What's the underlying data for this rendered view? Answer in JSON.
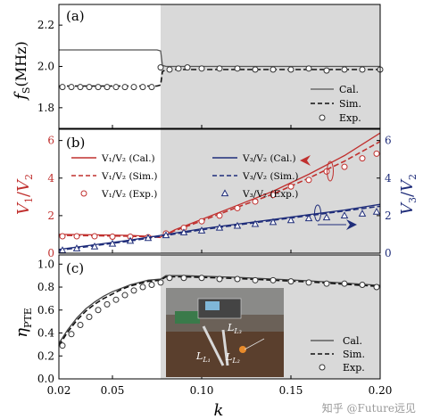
{
  "chart_data": [
    {
      "panel": "(a)",
      "type": "line",
      "ylabel_main": "f",
      "ylabel_sub": "S",
      "ylabel_unit": "(MHz)",
      "xlim": [
        0.02,
        0.2
      ],
      "ylim": [
        1.7,
        2.3
      ],
      "yticks": [
        "1.8",
        "2.0",
        "2.2"
      ],
      "ytick_values": [
        1.8,
        2.0,
        2.2
      ],
      "shaded_from_k": 0.077,
      "legend": {
        "position": "bottom-right",
        "entries": [
          "Cal.",
          "Sim.",
          "Exp."
        ]
      },
      "series": [
        {
          "name": "Cal.",
          "style": "solid",
          "color": "#555555",
          "x": [
            0.02,
            0.03,
            0.04,
            0.05,
            0.06,
            0.07,
            0.075,
            0.077,
            0.078,
            0.08,
            0.09,
            0.1,
            0.12,
            0.14,
            0.16,
            0.18,
            0.2
          ],
          "y": [
            2.08,
            2.08,
            2.08,
            2.08,
            2.08,
            2.08,
            2.08,
            2.075,
            2.005,
            2.0,
            2.0,
            2.0,
            2.0,
            2.0,
            2.0,
            2.0,
            2.0
          ]
        },
        {
          "name": "Sim.",
          "style": "dashed",
          "color": "#111111",
          "x": [
            0.02,
            0.03,
            0.04,
            0.05,
            0.06,
            0.07,
            0.075,
            0.077,
            0.078,
            0.08,
            0.09,
            0.1,
            0.12,
            0.14,
            0.16,
            0.18,
            0.2
          ],
          "y": [
            1.905,
            1.905,
            1.905,
            1.905,
            1.905,
            1.905,
            1.905,
            1.91,
            1.975,
            1.985,
            1.985,
            1.985,
            1.985,
            1.985,
            1.985,
            1.985,
            1.985
          ]
        },
        {
          "name": "Exp.",
          "style": "marker-circle",
          "color": "#333333",
          "x": [
            0.022,
            0.027,
            0.032,
            0.037,
            0.042,
            0.047,
            0.052,
            0.057,
            0.062,
            0.067,
            0.072,
            0.077,
            0.082,
            0.087,
            0.092,
            0.1,
            0.11,
            0.12,
            0.13,
            0.14,
            0.15,
            0.16,
            0.17,
            0.18,
            0.19,
            0.2
          ],
          "y": [
            1.9,
            1.9,
            1.9,
            1.9,
            1.9,
            1.9,
            1.9,
            1.9,
            1.9,
            1.9,
            1.9,
            1.995,
            1.985,
            1.99,
            1.995,
            1.99,
            1.99,
            1.99,
            1.985,
            1.985,
            1.985,
            1.99,
            1.98,
            1.985,
            1.985,
            1.985
          ]
        }
      ]
    },
    {
      "panel": "(b)",
      "type": "line",
      "ylabel_left_num": "V",
      "ylabel_left_num_sub": "1",
      "ylabel_left_den": "V",
      "ylabel_left_den_sub": "2",
      "ylabel_right_num": "V",
      "ylabel_right_num_sub": "3",
      "ylabel_right_den": "V",
      "ylabel_right_den_sub": "2",
      "xlim": [
        0.02,
        0.2
      ],
      "ylim_left": [
        0,
        6.6
      ],
      "ylim_right": [
        0,
        6.6
      ],
      "yticks_left": [
        "0",
        "2",
        "4",
        "6"
      ],
      "yticks_right": [
        "0",
        "2",
        "4",
        "6"
      ],
      "ytick_values": [
        0,
        2,
        4,
        6
      ],
      "shaded_from_k": 0.077,
      "legend": {
        "position": "top-left",
        "entries": [
          {
            "text": "V₁/V₂ (Cal.)",
            "style": "solid",
            "color": "#c0302e"
          },
          {
            "text": "V₃/V₂ (Cal.)",
            "style": "solid",
            "color": "#1f2d7a"
          },
          {
            "text": "V₁/V₂ (Sim.)",
            "style": "dashed",
            "color": "#c0302e"
          },
          {
            "text": "V₃/V₂ (Sim.)",
            "style": "dashed",
            "color": "#1f2d7a"
          },
          {
            "text": "V₁/V₂ (Exp.)",
            "style": "marker-circle",
            "color": "#c0302e"
          },
          {
            "text": "V₃/V₂ (Exp.)",
            "style": "marker-triangle",
            "color": "#1f2d7a"
          }
        ]
      },
      "series": [
        {
          "name": "V₁/V₂ (Cal.)",
          "axis": "left",
          "style": "solid",
          "color": "#c0302e",
          "x": [
            0.02,
            0.04,
            0.06,
            0.07,
            0.077,
            0.085,
            0.1,
            0.12,
            0.14,
            0.16,
            0.18,
            0.2
          ],
          "y": [
            1.0,
            0.98,
            0.95,
            0.9,
            0.86,
            1.25,
            1.8,
            2.55,
            3.3,
            4.2,
            5.2,
            6.4
          ]
        },
        {
          "name": "V₁/V₂ (Sim.)",
          "axis": "left",
          "style": "dashed",
          "color": "#c0302e",
          "x": [
            0.02,
            0.04,
            0.06,
            0.07,
            0.077,
            0.085,
            0.1,
            0.12,
            0.14,
            0.16,
            0.18,
            0.2
          ],
          "y": [
            0.95,
            0.93,
            0.9,
            0.88,
            0.84,
            1.2,
            1.72,
            2.45,
            3.15,
            4.0,
            4.9,
            5.95
          ]
        },
        {
          "name": "V₁/V₂ (Exp.)",
          "axis": "left",
          "style": "marker-circle",
          "color": "#c0302e",
          "x": [
            0.022,
            0.03,
            0.04,
            0.05,
            0.06,
            0.07,
            0.08,
            0.09,
            0.1,
            0.11,
            0.12,
            0.13,
            0.14,
            0.15,
            0.16,
            0.17,
            0.18,
            0.19,
            0.198
          ],
          "y": [
            0.9,
            0.9,
            0.9,
            0.88,
            0.88,
            0.85,
            1.05,
            1.35,
            1.7,
            2.0,
            2.4,
            2.75,
            3.1,
            3.55,
            3.9,
            4.35,
            4.6,
            5.05,
            5.3
          ]
        },
        {
          "name": "V₃/V₂ (Cal.)",
          "axis": "right",
          "style": "solid",
          "color": "#1f2d7a",
          "x": [
            0.02,
            0.04,
            0.06,
            0.077,
            0.1,
            0.12,
            0.14,
            0.16,
            0.18,
            0.2
          ],
          "y": [
            0.2,
            0.45,
            0.7,
            0.95,
            1.3,
            1.55,
            1.8,
            2.05,
            2.3,
            2.6
          ]
        },
        {
          "name": "V₃/V₂ (Sim.)",
          "axis": "right",
          "style": "dashed",
          "color": "#1f2d7a",
          "x": [
            0.02,
            0.04,
            0.06,
            0.077,
            0.1,
            0.12,
            0.14,
            0.16,
            0.18,
            0.2
          ],
          "y": [
            0.15,
            0.4,
            0.65,
            0.9,
            1.25,
            1.5,
            1.75,
            2.0,
            2.25,
            2.5
          ]
        },
        {
          "name": "V₃/V₂ (Exp.)",
          "axis": "right",
          "style": "marker-triangle",
          "color": "#1f2d7a",
          "x": [
            0.022,
            0.03,
            0.04,
            0.05,
            0.06,
            0.07,
            0.08,
            0.09,
            0.1,
            0.11,
            0.12,
            0.13,
            0.14,
            0.15,
            0.16,
            0.17,
            0.18,
            0.19,
            0.198
          ],
          "y": [
            0.15,
            0.25,
            0.35,
            0.5,
            0.65,
            0.8,
            0.95,
            1.1,
            1.2,
            1.35,
            1.45,
            1.55,
            1.65,
            1.75,
            1.85,
            1.9,
            2.0,
            2.1,
            2.2
          ]
        }
      ],
      "annotations": [
        {
          "type": "arrow",
          "direction": "left",
          "color": "#c0302e",
          "target_axis": "left"
        },
        {
          "type": "arrow",
          "direction": "right",
          "color": "#1f2d7a",
          "target_axis": "right"
        }
      ]
    },
    {
      "panel": "(c)",
      "type": "line",
      "ylabel_main": "η",
      "ylabel_sub": "PTE",
      "xlabel": "k",
      "xlim": [
        0.02,
        0.2
      ],
      "ylim": [
        0.0,
        1.08
      ],
      "yticks": [
        "0.0",
        "0.2",
        "0.4",
        "0.6",
        "0.8",
        "1.0"
      ],
      "ytick_values": [
        0.0,
        0.2,
        0.4,
        0.6,
        0.8,
        1.0
      ],
      "xticks": [
        "0.02",
        "0.05",
        "0.10",
        "0.15",
        "0.20"
      ],
      "xtick_values": [
        0.02,
        0.05,
        0.1,
        0.15,
        0.2
      ],
      "shaded_from_k": 0.077,
      "legend": {
        "position": "bottom-right",
        "entries": [
          "Cal.",
          "Sim.",
          "Exp."
        ]
      },
      "inset": {
        "description": "experimental setup photo",
        "labels": [
          "L₁",
          "L₂",
          "L₃"
        ]
      },
      "series": [
        {
          "name": "Cal.",
          "style": "solid",
          "color": "#444444",
          "x": [
            0.02,
            0.025,
            0.03,
            0.035,
            0.04,
            0.045,
            0.05,
            0.055,
            0.06,
            0.065,
            0.07,
            0.077,
            0.08,
            0.09,
            0.1,
            0.12,
            0.14,
            0.16,
            0.18,
            0.2
          ],
          "y": [
            0.31,
            0.43,
            0.53,
            0.61,
            0.67,
            0.72,
            0.76,
            0.79,
            0.82,
            0.84,
            0.86,
            0.87,
            0.9,
            0.9,
            0.895,
            0.885,
            0.87,
            0.855,
            0.835,
            0.815
          ]
        },
        {
          "name": "Sim.",
          "style": "dashed",
          "color": "#111111",
          "x": [
            0.02,
            0.025,
            0.03,
            0.035,
            0.04,
            0.045,
            0.05,
            0.055,
            0.06,
            0.065,
            0.07,
            0.077,
            0.08,
            0.09,
            0.1,
            0.12,
            0.14,
            0.16,
            0.18,
            0.2
          ],
          "y": [
            0.29,
            0.41,
            0.51,
            0.59,
            0.65,
            0.7,
            0.74,
            0.78,
            0.81,
            0.83,
            0.85,
            0.86,
            0.89,
            0.89,
            0.885,
            0.875,
            0.86,
            0.845,
            0.825,
            0.805
          ]
        },
        {
          "name": "Exp.",
          "style": "marker-circle",
          "color": "#333333",
          "x": [
            0.022,
            0.027,
            0.032,
            0.037,
            0.042,
            0.047,
            0.052,
            0.057,
            0.062,
            0.067,
            0.072,
            0.077,
            0.082,
            0.09,
            0.1,
            0.11,
            0.12,
            0.13,
            0.14,
            0.15,
            0.16,
            0.17,
            0.18,
            0.19,
            0.198
          ],
          "y": [
            0.29,
            0.39,
            0.47,
            0.54,
            0.6,
            0.65,
            0.69,
            0.73,
            0.77,
            0.8,
            0.82,
            0.84,
            0.88,
            0.88,
            0.88,
            0.87,
            0.87,
            0.86,
            0.86,
            0.85,
            0.84,
            0.83,
            0.83,
            0.82,
            0.8
          ]
        }
      ]
    }
  ],
  "watermark": "知乎 @Future远见",
  "colors": {
    "shade": "#d9d9d9",
    "red": "#c0302e",
    "blue": "#1f2d7a",
    "inset_bg": "#6b6158"
  }
}
